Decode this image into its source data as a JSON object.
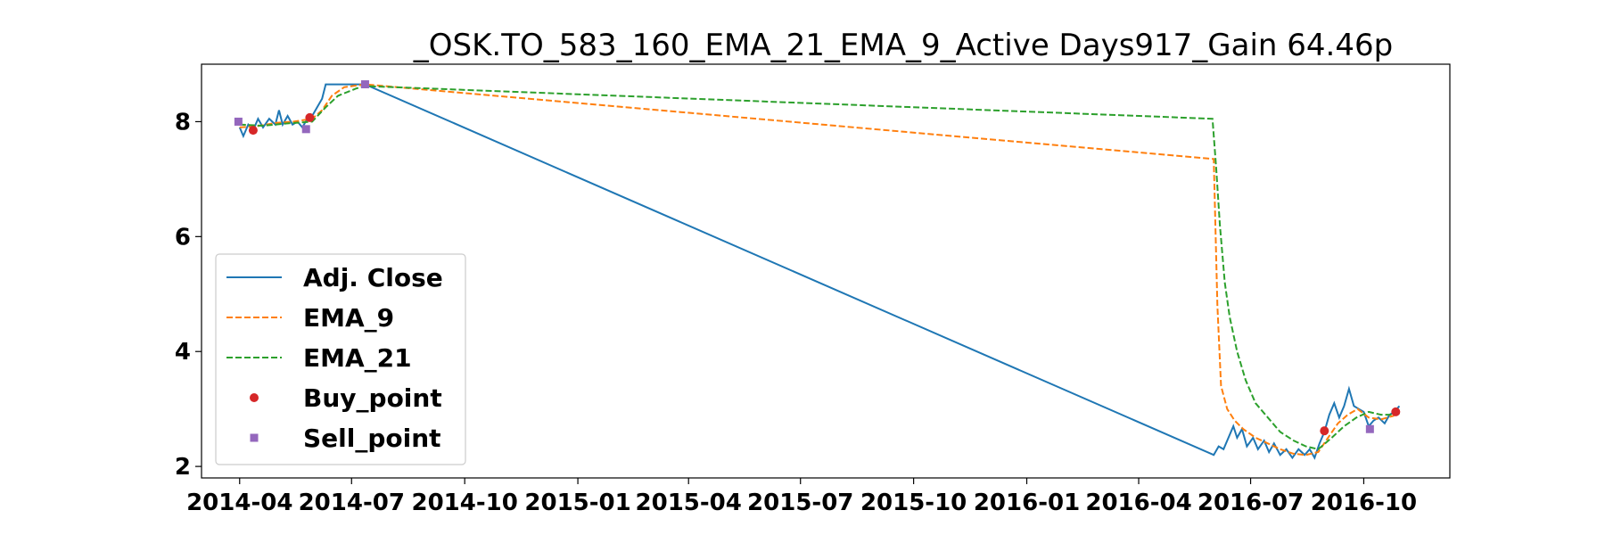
{
  "chart_data": {
    "type": "line",
    "title": "_OSK.TO_583_160_EMA_21_EMA_9_Active Days917_Gain  64.46p",
    "xlabel": "",
    "ylabel": "",
    "xlim": [
      "2014-03-01",
      "2016-12-10"
    ],
    "ylim": [
      1.8,
      9.0
    ],
    "grid": false,
    "legend_position": "lower-left",
    "x_ticks": [
      "2014-04",
      "2014-07",
      "2014-10",
      "2015-01",
      "2015-04",
      "2015-07",
      "2015-10",
      "2016-01",
      "2016-04",
      "2016-07",
      "2016-10"
    ],
    "y_ticks": [
      2,
      4,
      6,
      8
    ],
    "series": [
      {
        "name": "Adj. Close",
        "color": "#1f77b4",
        "style": "solid",
        "points": [
          [
            "2014-04-01",
            7.9
          ],
          [
            "2014-04-04",
            7.75
          ],
          [
            "2014-04-08",
            7.95
          ],
          [
            "2014-04-12",
            7.85
          ],
          [
            "2014-04-16",
            8.05
          ],
          [
            "2014-04-20",
            7.9
          ],
          [
            "2014-04-25",
            8.05
          ],
          [
            "2014-04-30",
            7.95
          ],
          [
            "2014-05-03",
            8.2
          ],
          [
            "2014-05-06",
            7.95
          ],
          [
            "2014-05-10",
            8.1
          ],
          [
            "2014-05-14",
            7.95
          ],
          [
            "2014-05-18",
            8.0
          ],
          [
            "2014-05-22",
            7.9
          ],
          [
            "2014-05-26",
            8.05
          ],
          [
            "2014-05-30",
            8.1
          ],
          [
            "2014-06-03",
            8.25
          ],
          [
            "2014-06-07",
            8.4
          ],
          [
            "2014-06-10",
            8.65
          ],
          [
            "2014-06-20",
            8.65
          ],
          [
            "2014-06-30",
            8.65
          ],
          [
            "2014-07-10",
            8.65
          ],
          [
            "2014-07-12",
            8.65
          ],
          [
            "2016-06-01",
            2.2
          ],
          [
            "2016-06-05",
            2.35
          ],
          [
            "2016-06-09",
            2.3
          ],
          [
            "2016-06-13",
            2.5
          ],
          [
            "2016-06-17",
            2.7
          ],
          [
            "2016-06-20",
            2.5
          ],
          [
            "2016-06-24",
            2.65
          ],
          [
            "2016-06-28",
            2.35
          ],
          [
            "2016-07-03",
            2.5
          ],
          [
            "2016-07-07",
            2.3
          ],
          [
            "2016-07-12",
            2.45
          ],
          [
            "2016-07-16",
            2.25
          ],
          [
            "2016-07-20",
            2.4
          ],
          [
            "2016-07-25",
            2.2
          ],
          [
            "2016-07-30",
            2.3
          ],
          [
            "2016-08-04",
            2.15
          ],
          [
            "2016-08-09",
            2.3
          ],
          [
            "2016-08-14",
            2.2
          ],
          [
            "2016-08-18",
            2.3
          ],
          [
            "2016-08-22",
            2.15
          ],
          [
            "2016-08-26",
            2.4
          ],
          [
            "2016-08-30",
            2.6
          ],
          [
            "2016-09-03",
            2.9
          ],
          [
            "2016-09-07",
            3.1
          ],
          [
            "2016-09-11",
            2.85
          ],
          [
            "2016-09-15",
            3.05
          ],
          [
            "2016-09-19",
            3.35
          ],
          [
            "2016-09-23",
            3.05
          ],
          [
            "2016-09-27",
            3.0
          ],
          [
            "2016-10-01",
            2.95
          ],
          [
            "2016-10-05",
            2.7
          ],
          [
            "2016-10-09",
            2.8
          ],
          [
            "2016-10-13",
            2.85
          ],
          [
            "2016-10-18",
            2.75
          ],
          [
            "2016-10-22",
            2.9
          ],
          [
            "2016-10-26",
            2.95
          ],
          [
            "2016-10-30",
            3.05
          ]
        ]
      },
      {
        "name": "EMA_9",
        "color": "#ff7f0e",
        "style": "dashed",
        "points": [
          [
            "2014-04-01",
            7.9
          ],
          [
            "2014-04-15",
            7.92
          ],
          [
            "2014-05-01",
            7.98
          ],
          [
            "2014-05-15",
            8.0
          ],
          [
            "2014-05-30",
            8.05
          ],
          [
            "2014-06-07",
            8.2
          ],
          [
            "2014-06-15",
            8.45
          ],
          [
            "2014-06-25",
            8.6
          ],
          [
            "2014-07-12",
            8.65
          ],
          [
            "2016-06-01",
            7.35
          ],
          [
            "2016-06-04",
            4.8
          ],
          [
            "2016-06-07",
            3.4
          ],
          [
            "2016-06-12",
            3.0
          ],
          [
            "2016-06-18",
            2.8
          ],
          [
            "2016-06-25",
            2.65
          ],
          [
            "2016-07-05",
            2.5
          ],
          [
            "2016-07-15",
            2.4
          ],
          [
            "2016-07-25",
            2.3
          ],
          [
            "2016-08-05",
            2.22
          ],
          [
            "2016-08-15",
            2.2
          ],
          [
            "2016-08-25",
            2.25
          ],
          [
            "2016-09-02",
            2.5
          ],
          [
            "2016-09-10",
            2.75
          ],
          [
            "2016-09-18",
            2.9
          ],
          [
            "2016-09-26",
            3.0
          ],
          [
            "2016-10-05",
            2.85
          ],
          [
            "2016-10-15",
            2.82
          ],
          [
            "2016-10-25",
            2.88
          ],
          [
            "2016-10-30",
            2.95
          ]
        ]
      },
      {
        "name": "EMA_21",
        "color": "#2ca02c",
        "style": "dashed",
        "points": [
          [
            "2014-04-01",
            7.95
          ],
          [
            "2014-04-20",
            7.93
          ],
          [
            "2014-05-10",
            7.97
          ],
          [
            "2014-05-30",
            8.0
          ],
          [
            "2014-06-10",
            8.25
          ],
          [
            "2014-06-20",
            8.45
          ],
          [
            "2014-07-05",
            8.58
          ],
          [
            "2014-07-12",
            8.62
          ],
          [
            "2016-05-31",
            8.05
          ],
          [
            "2016-06-03",
            7.2
          ],
          [
            "2016-06-06",
            6.2
          ],
          [
            "2016-06-10",
            5.2
          ],
          [
            "2016-06-14",
            4.6
          ],
          [
            "2016-06-20",
            4.0
          ],
          [
            "2016-06-27",
            3.5
          ],
          [
            "2016-07-05",
            3.1
          ],
          [
            "2016-07-15",
            2.85
          ],
          [
            "2016-07-25",
            2.6
          ],
          [
            "2016-08-05",
            2.45
          ],
          [
            "2016-08-15",
            2.35
          ],
          [
            "2016-08-25",
            2.3
          ],
          [
            "2016-09-05",
            2.5
          ],
          [
            "2016-09-15",
            2.7
          ],
          [
            "2016-09-25",
            2.85
          ],
          [
            "2016-10-05",
            2.95
          ],
          [
            "2016-10-15",
            2.9
          ],
          [
            "2016-10-25",
            2.9
          ],
          [
            "2016-10-30",
            2.92
          ]
        ]
      }
    ],
    "markers": [
      {
        "name": "Buy_point",
        "color": "#d62728",
        "shape": "circle",
        "points": [
          [
            "2014-04-12",
            7.85
          ],
          [
            "2014-05-28",
            8.07
          ],
          [
            "2016-08-30",
            2.62
          ],
          [
            "2016-10-27",
            2.95
          ]
        ]
      },
      {
        "name": "Sell_point",
        "color": "#9467bd",
        "shape": "square",
        "points": [
          [
            "2014-03-31",
            8.0
          ],
          [
            "2014-05-25",
            7.87
          ],
          [
            "2014-07-12",
            8.65
          ],
          [
            "2016-10-06",
            2.65
          ]
        ]
      }
    ]
  }
}
